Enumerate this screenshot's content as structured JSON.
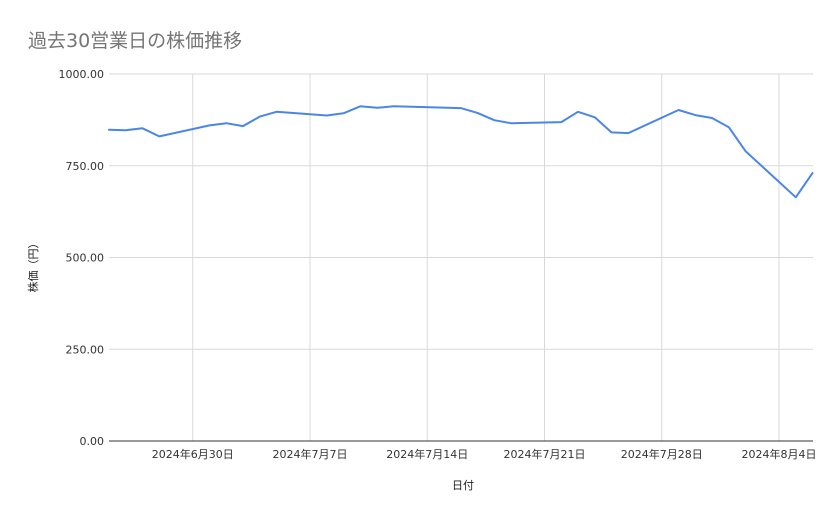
{
  "chart_data": {
    "type": "line",
    "title": "過去30営業日の株価推移",
    "xlabel": "日付",
    "ylabel": "株価（円）",
    "ylim": [
      0,
      1000
    ],
    "y_ticks": [
      "0.00",
      "250.00",
      "500.00",
      "750.00",
      "1000.00"
    ],
    "x_ticks": [
      {
        "date": "2024-06-30",
        "label": "2024年6月30日"
      },
      {
        "date": "2024-07-07",
        "label": "2024年7月7日"
      },
      {
        "date": "2024-07-14",
        "label": "2024年7月14日"
      },
      {
        "date": "2024-07-21",
        "label": "2024年7月21日"
      },
      {
        "date": "2024-07-28",
        "label": "2024年7月28日"
      },
      {
        "date": "2024-08-04",
        "label": "2024年8月4日"
      }
    ],
    "x_range": [
      "2024-06-25",
      "2024-08-06"
    ],
    "grid": true,
    "line_color": "#4a86e8",
    "series": [
      {
        "points": [
          {
            "x": "2024-06-25",
            "y": 848
          },
          {
            "x": "2024-06-26",
            "y": 847
          },
          {
            "x": "2024-06-27",
            "y": 852
          },
          {
            "x": "2024-06-28",
            "y": 830
          },
          {
            "x": "2024-07-01",
            "y": 860
          },
          {
            "x": "2024-07-02",
            "y": 866
          },
          {
            "x": "2024-07-03",
            "y": 858
          },
          {
            "x": "2024-07-04",
            "y": 884
          },
          {
            "x": "2024-07-05",
            "y": 897
          },
          {
            "x": "2024-07-08",
            "y": 887
          },
          {
            "x": "2024-07-09",
            "y": 893
          },
          {
            "x": "2024-07-10",
            "y": 912
          },
          {
            "x": "2024-07-11",
            "y": 908
          },
          {
            "x": "2024-07-12",
            "y": 912
          },
          {
            "x": "2024-07-16",
            "y": 907
          },
          {
            "x": "2024-07-17",
            "y": 894
          },
          {
            "x": "2024-07-18",
            "y": 874
          },
          {
            "x": "2024-07-19",
            "y": 866
          },
          {
            "x": "2024-07-22",
            "y": 869
          },
          {
            "x": "2024-07-23",
            "y": 897
          },
          {
            "x": "2024-07-24",
            "y": 882
          },
          {
            "x": "2024-07-25",
            "y": 841
          },
          {
            "x": "2024-07-26",
            "y": 839
          },
          {
            "x": "2024-07-29",
            "y": 902
          },
          {
            "x": "2024-07-30",
            "y": 888
          },
          {
            "x": "2024-07-31",
            "y": 880
          },
          {
            "x": "2024-08-01",
            "y": 855
          },
          {
            "x": "2024-08-02",
            "y": 790
          },
          {
            "x": "2024-08-05",
            "y": 664
          },
          {
            "x": "2024-08-06",
            "y": 730
          }
        ]
      }
    ]
  }
}
